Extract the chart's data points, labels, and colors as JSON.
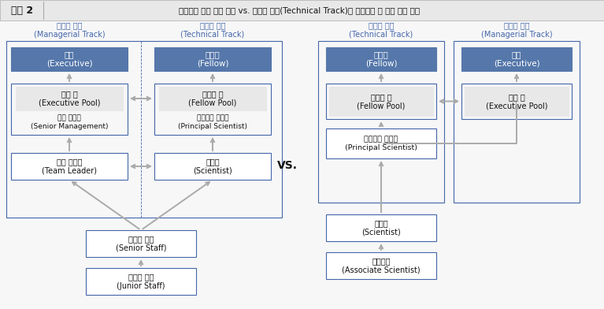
{
  "title_label": "그림 2",
  "title_text": "전통적인 이중 경력 경로 vs. 전문가 트랙(Technical Track)을 디폴트로 한 이중 경력 경로",
  "fig_bg": "#f7f7f7",
  "title_bg": "#e8e8e8",
  "white": "#ffffff",
  "header_blue": "#5577aa",
  "border_blue": "#4466aa",
  "pool_gray": "#e8e8e8",
  "arrow_gray": "#aaaaaa",
  "text_dark": "#111111",
  "blue_text": "#4466aa",
  "vs_text": "VS.",
  "left_track1_label": "관리자 트랙\n(Managerial Track)",
  "left_track2_label": "전문가 트랙\n(Technical Track)",
  "right_track1_label": "전문가 트랙\n(Technical Track)",
  "right_track2_label": "관리자 트랙\n(Managerial Track)",
  "L_exec": "임원\n(Executive)",
  "L_fellow": "펠로우\n(Fellow)",
  "L_exec_pool": "임원 풀\n(Executive Pool)",
  "L_senior_mgmt": "고위 관리자\n(Senior Management)",
  "L_fellow_pool": "펠로우 풀\n(Fellow Pool)",
  "L_principal_sci": "프린서플 과학자\n(Principal Scientist)",
  "L_team_leader": "중간 관리자\n(Team Leader)",
  "L_scientist": "과학자\n(Scientist)",
  "L_senior_staff": "시니어 직원\n(Senior Staff)",
  "L_junior_staff": "주니어 직원\n(Junior Staff)",
  "R_fellow": "펠로우\n(Fellow)",
  "R_exec": "임원\n(Executive)",
  "R_fellow_pool": "펠로우 풀\n(Fellow Pool)",
  "R_exec_pool": "임원 풀\n(Executive Pool)",
  "R_principal_sci": "프린서플 과학자\n(Principal Scientist)",
  "R_scientist": "과학자\n(Scientist)",
  "R_assoc_sci": "부과학자\n(Associate Scientist)"
}
